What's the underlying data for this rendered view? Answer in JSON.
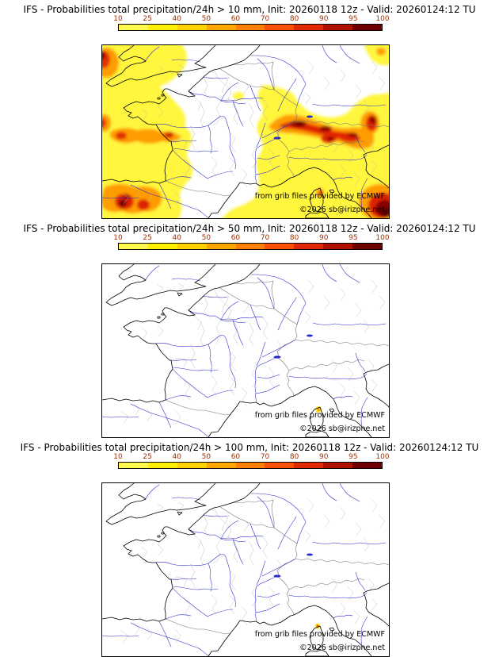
{
  "panels": [
    {
      "title": "IFS - Probabilities total precipitation/24h > 10 mm, Init: 20260118 12z - Valid: 20260124:12 TU",
      "threshold_mm": 10,
      "attribution_line1": "from grib files provided by ECMWF",
      "attribution_line2": "©2026 sb@irizpne.net"
    },
    {
      "title": "IFS - Probabilities total precipitation/24h > 50 mm, Init: 20260118 12z - Valid: 20260124:12 TU",
      "threshold_mm": 50,
      "attribution_line1": "from grib files provided by ECMWF",
      "attribution_line2": "©2026 sb@irizpne.net"
    },
    {
      "title": "IFS - Probabilities total precipitation/24h > 100 mm, Init: 20260118 12z - Valid: 20260124:12 TU",
      "threshold_mm": 100,
      "attribution_line1": "from grib files provided by ECMWF",
      "attribution_line2": "©2026 sb@irizpne.net"
    }
  ],
  "colorbar": {
    "unit": "%",
    "ticks": [
      "10",
      "25",
      "40",
      "50",
      "60",
      "70",
      "80",
      "90",
      "95",
      "100"
    ],
    "segment_colors": [
      "#fff94d",
      "#fff000",
      "#ffd100",
      "#ffa600",
      "#ff7f00",
      "#fa5000",
      "#e02800",
      "#b01000",
      "#700000"
    ],
    "tick_color": "#a03000"
  },
  "map_colors": {
    "coastline": "#000000",
    "country_border": "#787878",
    "department_border": "#b8b8b8",
    "river": "#2828cc"
  }
}
